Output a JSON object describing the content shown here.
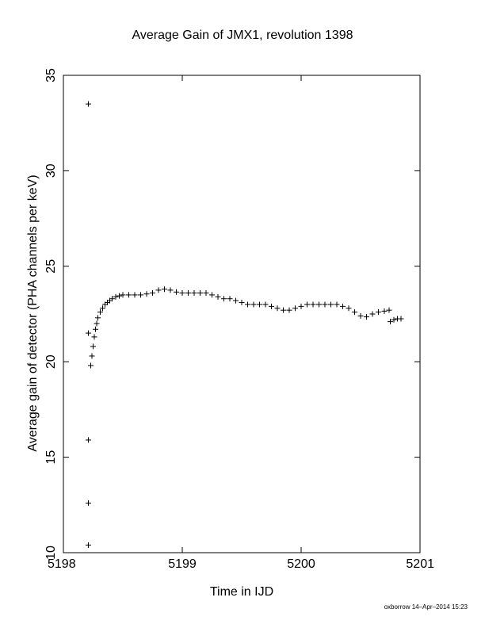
{
  "chart_data": {
    "type": "scatter",
    "title": "Average Gain of JMX1, revolution 1398",
    "xlabel": "Time in IJD",
    "ylabel": "Average gain of detector (PHA channels per keV)",
    "xlim": [
      5198,
      5201
    ],
    "ylim": [
      10,
      35
    ],
    "xticks": [
      "5198",
      "5199",
      "5200",
      "5201"
    ],
    "yticks": [
      "10",
      "15",
      "20",
      "25",
      "30",
      "35"
    ],
    "marker": "+",
    "grid": false,
    "series": [
      {
        "points": [
          [
            5198.21,
            33.5
          ],
          [
            5198.21,
            21.5
          ],
          [
            5198.21,
            15.9
          ],
          [
            5198.21,
            12.6
          ],
          [
            5198.21,
            10.4
          ],
          [
            5198.23,
            19.8
          ],
          [
            5198.24,
            20.3
          ],
          [
            5198.25,
            20.8
          ],
          [
            5198.26,
            21.3
          ],
          [
            5198.27,
            21.7
          ],
          [
            5198.28,
            22.0
          ],
          [
            5198.29,
            22.3
          ],
          [
            5198.31,
            22.6
          ],
          [
            5198.33,
            22.8
          ],
          [
            5198.35,
            23.0
          ],
          [
            5198.37,
            23.1
          ],
          [
            5198.39,
            23.2
          ],
          [
            5198.41,
            23.3
          ],
          [
            5198.44,
            23.4
          ],
          [
            5198.47,
            23.45
          ],
          [
            5198.5,
            23.5
          ],
          [
            5198.55,
            23.5
          ],
          [
            5198.6,
            23.5
          ],
          [
            5198.65,
            23.5
          ],
          [
            5198.7,
            23.55
          ],
          [
            5198.75,
            23.6
          ],
          [
            5198.8,
            23.75
          ],
          [
            5198.85,
            23.8
          ],
          [
            5198.9,
            23.75
          ],
          [
            5198.95,
            23.65
          ],
          [
            5199.0,
            23.6
          ],
          [
            5199.05,
            23.6
          ],
          [
            5199.1,
            23.6
          ],
          [
            5199.15,
            23.6
          ],
          [
            5199.2,
            23.6
          ],
          [
            5199.25,
            23.5
          ],
          [
            5199.3,
            23.4
          ],
          [
            5199.35,
            23.3
          ],
          [
            5199.4,
            23.3
          ],
          [
            5199.45,
            23.2
          ],
          [
            5199.5,
            23.1
          ],
          [
            5199.55,
            23.0
          ],
          [
            5199.6,
            23.0
          ],
          [
            5199.65,
            23.0
          ],
          [
            5199.7,
            23.0
          ],
          [
            5199.75,
            22.9
          ],
          [
            5199.8,
            22.8
          ],
          [
            5199.85,
            22.7
          ],
          [
            5199.9,
            22.7
          ],
          [
            5199.95,
            22.8
          ],
          [
            5200.0,
            22.9
          ],
          [
            5200.05,
            23.0
          ],
          [
            5200.1,
            23.0
          ],
          [
            5200.15,
            23.0
          ],
          [
            5200.2,
            23.0
          ],
          [
            5200.25,
            23.0
          ],
          [
            5200.3,
            23.0
          ],
          [
            5200.35,
            22.9
          ],
          [
            5200.4,
            22.8
          ],
          [
            5200.45,
            22.6
          ],
          [
            5200.5,
            22.4
          ],
          [
            5200.55,
            22.35
          ],
          [
            5200.6,
            22.5
          ],
          [
            5200.65,
            22.6
          ],
          [
            5200.7,
            22.65
          ],
          [
            5200.74,
            22.7
          ],
          [
            5200.75,
            22.1
          ],
          [
            5200.78,
            22.2
          ],
          [
            5200.81,
            22.25
          ],
          [
            5200.84,
            22.25
          ]
        ]
      }
    ]
  },
  "footer": "oxborrow 14–Apr–2014 15:23"
}
